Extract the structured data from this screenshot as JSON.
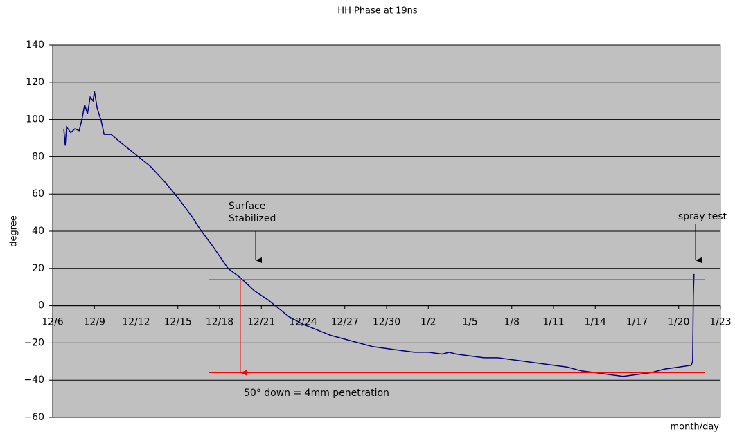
{
  "chart_data": {
    "type": "line",
    "title": "HH Phase at 19ns",
    "ylabel": "degree",
    "xlabel": "month/day",
    "color": "#000080",
    "x": [
      0.8,
      0.9,
      1.0,
      1.3,
      1.6,
      1.9,
      2.1,
      2.3,
      2.5,
      2.7,
      2.9,
      3.0,
      3.2,
      3.5,
      3.7,
      4.2,
      5,
      6,
      7,
      8,
      9,
      10,
      10.6,
      11.5,
      12.6,
      13.5,
      14.5,
      15.5,
      16,
      17,
      18,
      19,
      20,
      21,
      22,
      23,
      24,
      25,
      26,
      27,
      28,
      28.5,
      29,
      30,
      31,
      32,
      33,
      34,
      35,
      36,
      37,
      38,
      39,
      40,
      41,
      42,
      43,
      44,
      45,
      45.9,
      46,
      46.05,
      46.1
    ],
    "values": [
      95,
      86,
      96,
      93,
      95,
      94,
      100,
      108,
      103,
      112,
      110,
      115,
      106,
      99,
      92,
      92,
      87,
      81,
      75,
      67,
      58,
      48,
      41,
      32,
      20,
      15,
      8,
      3,
      0,
      -6,
      -10,
      -13,
      -16,
      -18,
      -20,
      -22,
      -23,
      -24,
      -25,
      -25,
      -26,
      -25,
      -26,
      -27,
      -28,
      -28,
      -29,
      -30,
      -31,
      -32,
      -33,
      -35,
      -36,
      -37,
      -38,
      -37,
      -36,
      -34,
      -33,
      -32,
      -30,
      5,
      17
    ],
    "xlim": [
      0,
      48
    ],
    "xticks": [
      {
        "value": 0,
        "label": "12/6"
      },
      {
        "value": 3,
        "label": "12/9"
      },
      {
        "value": 6,
        "label": "12/12"
      },
      {
        "value": 9,
        "label": "12/15"
      },
      {
        "value": 12,
        "label": "12/18"
      },
      {
        "value": 15,
        "label": "12/21"
      },
      {
        "value": 18,
        "label": "12/24"
      },
      {
        "value": 21,
        "label": "12/27"
      },
      {
        "value": 24,
        "label": "12/30"
      },
      {
        "value": 27,
        "label": "1/2"
      },
      {
        "value": 30,
        "label": "1/5"
      },
      {
        "value": 33,
        "label": "1/8"
      },
      {
        "value": 36,
        "label": "1/11"
      },
      {
        "value": 39,
        "label": "1/14"
      },
      {
        "value": 42,
        "label": "1/17"
      },
      {
        "value": 45,
        "label": "1/20"
      },
      {
        "value": 48,
        "label": "1/23"
      }
    ],
    "ylim": [
      -60,
      140
    ],
    "yticks": [
      {
        "value": -60,
        "label": "−60"
      },
      {
        "value": -40,
        "label": "−40"
      },
      {
        "value": -20,
        "label": "−20"
      },
      0,
      20,
      40,
      60,
      80,
      100,
      120,
      140
    ],
    "grid": true,
    "reference_lines": [
      {
        "y": 14,
        "x": [
          11.25,
          46.9
        ]
      },
      {
        "y": -36,
        "x": [
          11.25,
          46.9
        ]
      }
    ],
    "reference_color": "#ff0000",
    "annotations": [
      {
        "text": [
          "Surface",
          "Stabilized"
        ]
      },
      {
        "text": [
          "spray test"
        ]
      },
      {
        "text": [
          "50° down = 4mm penetration"
        ]
      }
    ]
  }
}
